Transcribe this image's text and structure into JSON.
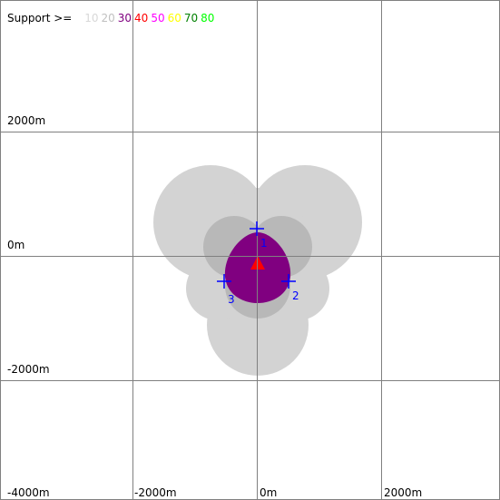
{
  "legend": {
    "title": "Support >=",
    "levels": [
      {
        "label": "10",
        "color": "#d8d8d8"
      },
      {
        "label": "20",
        "color": "#c0c0c0"
      },
      {
        "label": "30",
        "color": "#800080"
      },
      {
        "label": "40",
        "color": "#ff0000"
      },
      {
        "label": "50",
        "color": "#ff00ff"
      },
      {
        "label": "60",
        "color": "#ffff00"
      },
      {
        "label": "70",
        "color": "#008000"
      },
      {
        "label": "80",
        "color": "#00ff00"
      }
    ]
  },
  "y_axis_labels": [
    "2000m",
    "0m",
    "-2000m"
  ],
  "x_axis_labels": [
    "-4000m",
    "-2000m",
    "0m",
    "2000m"
  ],
  "stations": [
    "1",
    "2",
    "3"
  ]
}
